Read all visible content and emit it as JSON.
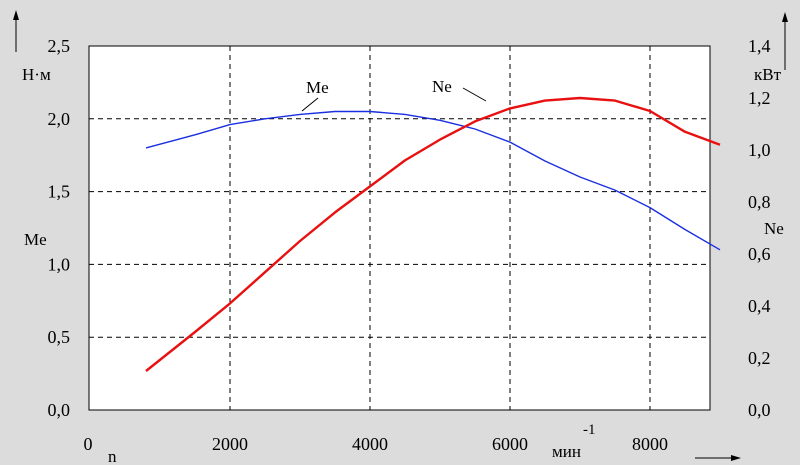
{
  "chart_data": {
    "type": "line",
    "x_axis": {
      "label": "n",
      "unit": "мин",
      "unit_exp": "-1",
      "range": [
        0,
        9200
      ],
      "ticks": [
        0,
        2000,
        4000,
        6000,
        8000
      ],
      "tick_labels": [
        "0",
        "2000",
        "4000",
        "6000",
        "8000"
      ]
    },
    "y_left": {
      "label": "Me",
      "unit": "Н·м",
      "range": [
        0,
        2.5
      ],
      "ticks": [
        0,
        0.5,
        1.0,
        1.5,
        2.0,
        2.5
      ],
      "tick_labels": [
        "0,0",
        "0,5",
        "1,0",
        "1,5",
        "2,0",
        "2,5"
      ]
    },
    "y_right": {
      "label": "Ne",
      "unit": "кВт",
      "range": [
        0,
        1.4
      ],
      "ticks": [
        0,
        0.2,
        0.4,
        0.6,
        0.8,
        1.0,
        1.2,
        1.4
      ],
      "tick_labels": [
        "0,0",
        "0,2",
        "0,4",
        "0,6",
        "0,8",
        "1,0",
        "1,2",
        "1,4"
      ]
    },
    "grid": true,
    "series": [
      {
        "name": "Me",
        "axis": "left",
        "color": "#1a2fe0",
        "x": [
          800,
          1500,
          2000,
          2500,
          3000,
          3500,
          4000,
          4500,
          5000,
          5500,
          6000,
          6500,
          7000,
          7500,
          8000,
          8500,
          9000
        ],
        "values": [
          1.8,
          1.89,
          1.96,
          2.0,
          2.03,
          2.05,
          2.05,
          2.03,
          1.99,
          1.93,
          1.84,
          1.71,
          1.6,
          1.51,
          1.39,
          1.24,
          1.1
        ]
      },
      {
        "name": "Ne",
        "axis": "right",
        "color": "#e81010",
        "x": [
          800,
          1500,
          2000,
          2500,
          3000,
          3500,
          4000,
          4500,
          5000,
          5500,
          6000,
          6500,
          7000,
          7500,
          8000,
          8500,
          9000
        ],
        "values": [
          0.15,
          0.3,
          0.41,
          0.53,
          0.65,
          0.76,
          0.86,
          0.96,
          1.04,
          1.11,
          1.16,
          1.19,
          1.2,
          1.19,
          1.15,
          1.07,
          1.02
        ]
      }
    ]
  }
}
